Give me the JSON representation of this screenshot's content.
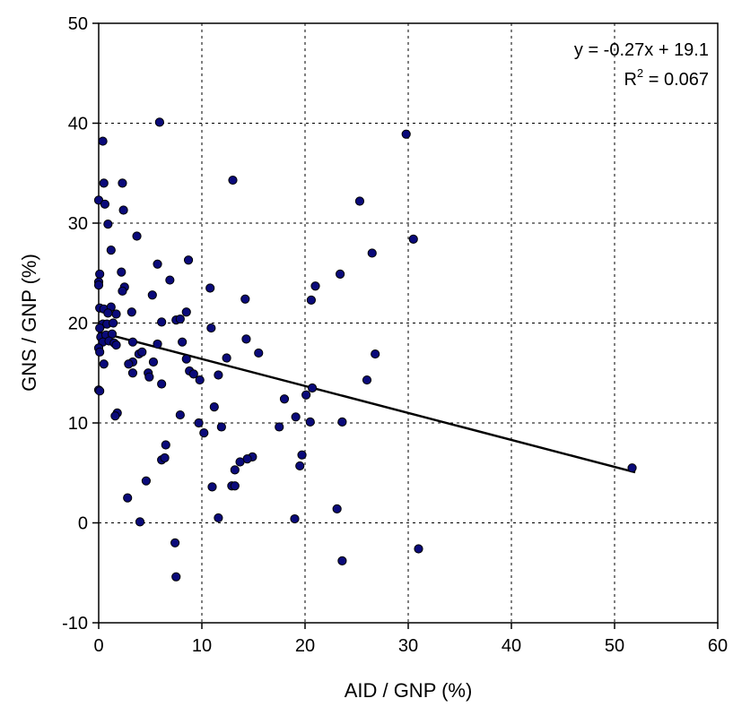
{
  "chart_data": {
    "type": "scatter",
    "xlabel": "AID / GNP (%)",
    "ylabel": "GNS / GNP (%)",
    "xlim": [
      0,
      60
    ],
    "ylim": [
      -10,
      50
    ],
    "xticks": [
      0,
      10,
      20,
      30,
      40,
      50,
      60
    ],
    "yticks": [
      -10,
      0,
      10,
      20,
      30,
      40,
      50
    ],
    "grid": true,
    "point_color": "#0a0a7a",
    "trendline": {
      "slope": -0.27,
      "intercept": 19.1,
      "x_range": [
        0,
        52
      ]
    },
    "annotations": {
      "equation": "y = -0.27x + 19.1",
      "r2_prefix": "R",
      "r2_sup": "2",
      "r2_value": " = 0.067"
    },
    "series": [
      {
        "points": [
          [
            5.9,
            40.1
          ],
          [
            0.4,
            38.2
          ],
          [
            29.8,
            38.9
          ],
          [
            13.0,
            34.3
          ],
          [
            0.5,
            34.0
          ],
          [
            2.3,
            34.0
          ],
          [
            0,
            32.3
          ],
          [
            0.6,
            31.9
          ],
          [
            25.3,
            32.2
          ],
          [
            2.4,
            31.3
          ],
          [
            0.9,
            29.9
          ],
          [
            3.7,
            28.7
          ],
          [
            30.5,
            28.4
          ],
          [
            1.2,
            27.3
          ],
          [
            26.5,
            27.0
          ],
          [
            8.7,
            26.3
          ],
          [
            5.7,
            25.9
          ],
          [
            2.2,
            25.1
          ],
          [
            0.1,
            24.9
          ],
          [
            23.4,
            24.9
          ],
          [
            6.9,
            24.3
          ],
          [
            0,
            24.1
          ],
          [
            0,
            23.8
          ],
          [
            2.5,
            23.6
          ],
          [
            21.0,
            23.7
          ],
          [
            10.8,
            23.5
          ],
          [
            2.3,
            23.2
          ],
          [
            5.2,
            22.8
          ],
          [
            14.2,
            22.4
          ],
          [
            20.6,
            22.3
          ],
          [
            0.1,
            21.5
          ],
          [
            0.5,
            21.4
          ],
          [
            1.2,
            21.6
          ],
          [
            0.9,
            21.0
          ],
          [
            3.2,
            21.1
          ],
          [
            8.5,
            21.1
          ],
          [
            1.7,
            20.9
          ],
          [
            7.5,
            20.3
          ],
          [
            7.9,
            20.4
          ],
          [
            6.1,
            20.1
          ],
          [
            0.4,
            19.9
          ],
          [
            0.8,
            19.9
          ],
          [
            1.4,
            20.0
          ],
          [
            0.1,
            19.5
          ],
          [
            10.9,
            19.5
          ],
          [
            0.2,
            18.6
          ],
          [
            0.7,
            18.8
          ],
          [
            1.3,
            18.9
          ],
          [
            0.4,
            18.1
          ],
          [
            1.0,
            18.2
          ],
          [
            1.5,
            18.0
          ],
          [
            3.3,
            18.1
          ],
          [
            5.7,
            17.9
          ],
          [
            8.1,
            18.1
          ],
          [
            14.3,
            18.4
          ],
          [
            0,
            17.5
          ],
          [
            1.7,
            17.8
          ],
          [
            0.1,
            17.1
          ],
          [
            3.9,
            16.9
          ],
          [
            4.2,
            17.1
          ],
          [
            15.5,
            17.0
          ],
          [
            26.8,
            16.9
          ],
          [
            8.5,
            16.4
          ],
          [
            12.4,
            16.5
          ],
          [
            3.3,
            16.1
          ],
          [
            2.9,
            15.9
          ],
          [
            5.3,
            16.1
          ],
          [
            0.5,
            15.9
          ],
          [
            8.8,
            15.2
          ],
          [
            9.2,
            14.9
          ],
          [
            11.6,
            14.8
          ],
          [
            3.3,
            15.0
          ],
          [
            4.8,
            15.0
          ],
          [
            4.9,
            14.6
          ],
          [
            9.8,
            14.3
          ],
          [
            26.0,
            14.3
          ],
          [
            6.1,
            13.9
          ],
          [
            0,
            13.3
          ],
          [
            0.1,
            13.2
          ],
          [
            20.7,
            13.5
          ],
          [
            20.1,
            12.8
          ],
          [
            18.0,
            12.4
          ],
          [
            11.2,
            11.6
          ],
          [
            1.8,
            11.0
          ],
          [
            1.6,
            10.7
          ],
          [
            7.9,
            10.8
          ],
          [
            19.1,
            10.6
          ],
          [
            9.7,
            10.0
          ],
          [
            17.5,
            9.6
          ],
          [
            11.9,
            9.6
          ],
          [
            20.5,
            10.1
          ],
          [
            23.6,
            10.1
          ],
          [
            10.2,
            9.0
          ],
          [
            6.5,
            7.8
          ],
          [
            19.7,
            6.8
          ],
          [
            14.9,
            6.6
          ],
          [
            14.4,
            6.4
          ],
          [
            13.7,
            6.1
          ],
          [
            6.1,
            6.3
          ],
          [
            6.4,
            6.5
          ],
          [
            19.5,
            5.7
          ],
          [
            13.2,
            5.3
          ],
          [
            51.7,
            5.5
          ],
          [
            4.6,
            4.2
          ],
          [
            12.9,
            3.7
          ],
          [
            13.2,
            3.7
          ],
          [
            11.0,
            3.6
          ],
          [
            2.8,
            2.5
          ],
          [
            23.1,
            1.4
          ],
          [
            11.6,
            0.5
          ],
          [
            19.0,
            0.4
          ],
          [
            4.0,
            0.1
          ],
          [
            7.4,
            -2.0
          ],
          [
            31.0,
            -2.6
          ],
          [
            23.6,
            -3.8
          ],
          [
            7.5,
            -5.4
          ]
        ]
      }
    ]
  }
}
